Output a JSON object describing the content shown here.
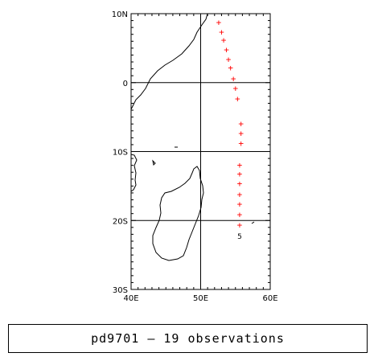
{
  "map": {
    "lon_range": [
      40,
      60
    ],
    "lat_range": [
      -30,
      10
    ],
    "lon_ticks": [
      {
        "value": 40,
        "label": "40E"
      },
      {
        "value": 50,
        "label": "50E"
      },
      {
        "value": 60,
        "label": "60E"
      }
    ],
    "lat_ticks": [
      {
        "value": 10,
        "label": "10N"
      },
      {
        "value": 0,
        "label": "0"
      },
      {
        "value": -10,
        "label": "10S"
      },
      {
        "value": -20,
        "label": "20S"
      },
      {
        "value": -30,
        "label": "30S"
      }
    ],
    "grid": true,
    "marker_symbol": "+",
    "marker_color": "#ff0000",
    "end_symbol": "5",
    "end_position": {
      "lon": 55.6,
      "lat": -21.0
    },
    "observations": [
      {
        "lon": 52.6,
        "lat": 8.8
      },
      {
        "lon": 53.0,
        "lat": 7.4
      },
      {
        "lon": 53.3,
        "lat": 6.2
      },
      {
        "lon": 53.7,
        "lat": 4.8
      },
      {
        "lon": 54.0,
        "lat": 3.4
      },
      {
        "lon": 54.3,
        "lat": 2.2
      },
      {
        "lon": 54.7,
        "lat": 0.6
      },
      {
        "lon": 55.0,
        "lat": -0.8
      },
      {
        "lon": 55.3,
        "lat": -2.3
      },
      {
        "lon": 55.8,
        "lat": -5.9
      },
      {
        "lon": 55.8,
        "lat": -7.3
      },
      {
        "lon": 55.8,
        "lat": -8.8
      },
      {
        "lon": 55.6,
        "lat": -11.9
      },
      {
        "lon": 55.6,
        "lat": -13.2
      },
      {
        "lon": 55.6,
        "lat": -14.6
      },
      {
        "lon": 55.6,
        "lat": -16.2
      },
      {
        "lon": 55.6,
        "lat": -17.6
      },
      {
        "lon": 55.6,
        "lat": -19.1
      },
      {
        "lon": 55.6,
        "lat": -20.6
      }
    ]
  },
  "caption": "pd9701 – 19 observations"
}
